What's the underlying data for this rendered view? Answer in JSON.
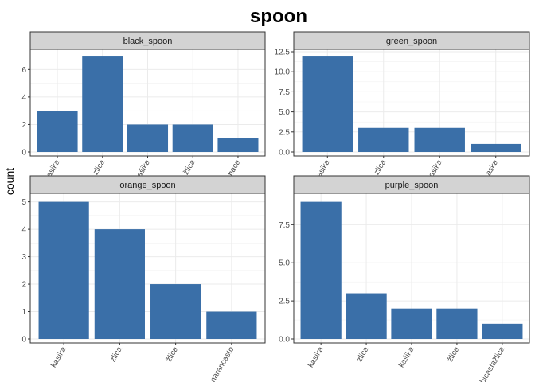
{
  "chart_data": {
    "type": "bar",
    "title": "spoon",
    "ylabel": "count",
    "xlabel": "",
    "bar_color": "#3A6FA8",
    "strip_color": "#D3D3D3",
    "grid": true,
    "panels": [
      {
        "name": "black_spoon",
        "categories": [
          "kasika",
          "zlica",
          "kašika",
          "žlica",
          "zajmaca"
        ],
        "values": [
          3,
          7,
          2,
          2,
          1
        ],
        "ylim": [
          0,
          7.35
        ],
        "yticks": [
          0,
          2,
          4,
          6
        ],
        "ytick_labels": [
          "0",
          "2",
          "4",
          "6"
        ]
      },
      {
        "name": "green_spoon",
        "categories": [
          "kasika",
          "zlica",
          "kašika",
          "kaska"
        ],
        "values": [
          12,
          3,
          3,
          1
        ],
        "ylim": [
          0,
          12.6
        ],
        "yticks": [
          0,
          2.5,
          5,
          7.5,
          10,
          12.5
        ],
        "ytick_labels": [
          "0.0",
          "2.5",
          "5.0",
          "7.5",
          "10.0",
          "12.5"
        ]
      },
      {
        "name": "orange_spoon",
        "categories": [
          "kasika",
          "zlica",
          "žlica",
          "narancasto"
        ],
        "values": [
          5,
          4,
          2,
          1
        ],
        "ylim": [
          0,
          5.25
        ],
        "yticks": [
          0,
          1,
          2,
          3,
          4,
          5
        ],
        "ytick_labels": [
          "0",
          "1",
          "2",
          "3",
          "4",
          "5"
        ]
      },
      {
        "name": "purple_spoon",
        "categories": [
          "kasika",
          "zlica",
          "kašika",
          "žlica",
          "ljubicastažlica"
        ],
        "values": [
          9,
          3,
          2,
          2,
          1
        ],
        "ylim": [
          0,
          9.45
        ],
        "yticks": [
          0,
          2.5,
          5,
          7.5
        ],
        "ytick_labels": [
          "0.0",
          "2.5",
          "5.0",
          "7.5"
        ]
      }
    ]
  }
}
